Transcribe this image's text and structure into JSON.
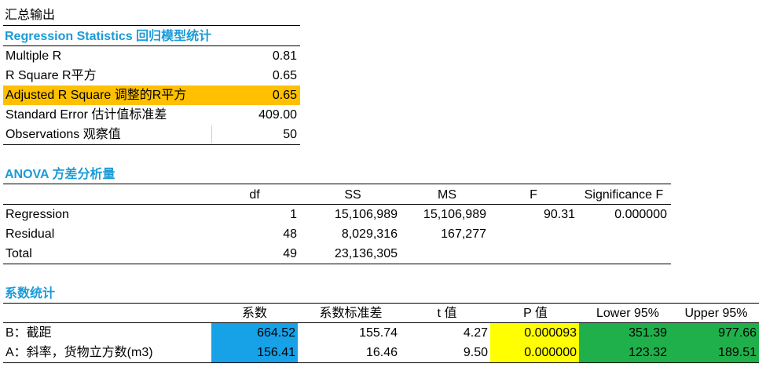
{
  "summary": {
    "title": "汇总输出",
    "reg_stats_header": "Regression Statistics 回归模型统计",
    "rows": [
      {
        "label": "Multiple R",
        "value": "0.81"
      },
      {
        "label": "R Square R平方",
        "value": "0.65"
      },
      {
        "label": "Adjusted R Square 调整的R平方",
        "value": "0.65"
      },
      {
        "label": "Standard Error 估计值标准差",
        "value": "409.00"
      },
      {
        "label": "Observations 观察值",
        "value": "50"
      }
    ]
  },
  "anova": {
    "title": "ANOVA 方差分析量",
    "headers": [
      "df",
      "SS",
      "MS",
      "F",
      "Significance F"
    ],
    "rows": [
      {
        "label": "Regression",
        "df": "1",
        "ss": "15,106,989",
        "ms": "15,106,989",
        "f": "90.31",
        "sig": "0.000000"
      },
      {
        "label": "Residual",
        "df": "48",
        "ss": "8,029,316",
        "ms": "167,277",
        "f": "",
        "sig": ""
      },
      {
        "label": "Total",
        "df": "49",
        "ss": "23,136,305",
        "ms": "",
        "f": "",
        "sig": ""
      }
    ]
  },
  "coef": {
    "title": "系数统计",
    "headers": [
      "系数",
      "系数标准差",
      "t 值",
      "P 值",
      "Lower 95%",
      "Upper 95%"
    ],
    "rows": [
      {
        "label": "B：截距",
        "coef": "664.52",
        "se": "155.74",
        "t": "4.27",
        "p": "0.000093",
        "lower": "351.39",
        "upper": "977.66"
      },
      {
        "label": "A：斜率，货物立方数(m3)",
        "coef": "156.41",
        "se": "16.46",
        "t": "9.50",
        "p": "0.000000",
        "lower": "123.32",
        "upper": "189.51"
      }
    ]
  },
  "colors": {
    "orange": "#ffc000",
    "blue": "#17a2e8",
    "yellow": "#ffff00",
    "green": "#20b04b",
    "heading": "#1a9bd7"
  }
}
